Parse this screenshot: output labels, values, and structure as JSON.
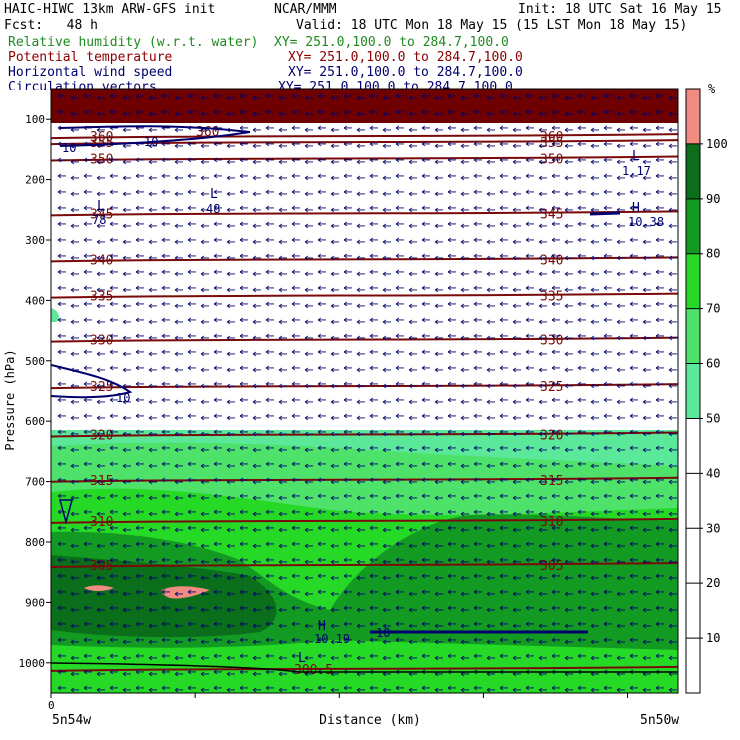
{
  "header": {
    "model": "HAIC-HIWC 13km ARW-GFS init",
    "org": "NCAR/MMM",
    "init": "Init: 18 UTC Sat 16 May 15",
    "fcst": "Fcst:   48 h",
    "valid": "Valid: 18 UTC Mon 18 May 15 (15 LST Mon 18 May 15)",
    "fields": [
      {
        "name": "Relative humidity (w.r.t. water)",
        "xy": "XY= 251.0,100.0 to 284.7,100.0",
        "color": "#1f8a1f"
      },
      {
        "name": "Potential temperature",
        "xy": "XY= 251.0,100.0 to 284.7,100.0",
        "color": "#8b0000"
      },
      {
        "name": "Horizontal wind speed",
        "xy": "XY= 251.0,100.0 to 284.7,100.0",
        "color": "#00006e"
      },
      {
        "name": "Circulation vectors",
        "xy": "XY= 251.0,100.0 to 284.7,100.0",
        "color": "#00006e"
      }
    ]
  },
  "chart_data": {
    "type": "heatmap",
    "xlabel": "Distance (km)",
    "ylabel": "Pressure (hPa)",
    "x_start_tick": "0",
    "x_left_label": "5n54w",
    "x_right_label": "5n50w",
    "yticks": [
      100,
      200,
      300,
      400,
      500,
      600,
      700,
      800,
      900,
      1000
    ],
    "ylim": [
      50,
      1050
    ],
    "colorbar": {
      "unit": "%",
      "ticks": [
        10,
        20,
        30,
        40,
        50,
        60,
        70,
        80,
        90,
        100
      ],
      "bins": [
        {
          "from": 50,
          "to": 60,
          "color": "#5ce89a"
        },
        {
          "from": 60,
          "to": 70,
          "color": "#4ee26a"
        },
        {
          "from": 70,
          "to": 80,
          "color": "#26d926"
        },
        {
          "from": 80,
          "to": 90,
          "color": "#129a22"
        },
        {
          "from": 90,
          "to": 100,
          "color": "#0a6e1a"
        },
        {
          "from": 100,
          "to": 110,
          "color": "#f08c82"
        }
      ]
    },
    "theta_contours": [
      {
        "label": "360",
        "p": 128
      },
      {
        "label": "355",
        "p": 138
      },
      {
        "label": "350",
        "p": 165
      },
      {
        "label": "345",
        "p": 256
      },
      {
        "label": "340",
        "p": 332
      },
      {
        "label": "335",
        "p": 392
      },
      {
        "label": "330",
        "p": 465
      },
      {
        "label": "325",
        "p": 542
      },
      {
        "label": "320",
        "p": 622
      },
      {
        "label": "315",
        "p": 697
      },
      {
        "label": "310",
        "p": 765
      },
      {
        "label": "305",
        "p": 838
      },
      {
        "label": "300.5",
        "p": 1010
      }
    ],
    "wind_labels": [
      "10",
      "10",
      "10",
      "10"
    ],
    "extrema": [
      {
        "type": "L",
        "value": "78"
      },
      {
        "type": "L",
        "value": "48"
      },
      {
        "type": "L",
        "value": "1.17"
      },
      {
        "type": "H",
        "value": "10.38"
      },
      {
        "type": "H",
        "value": "10.19"
      },
      {
        "type": "L",
        "value": ""
      }
    ]
  }
}
